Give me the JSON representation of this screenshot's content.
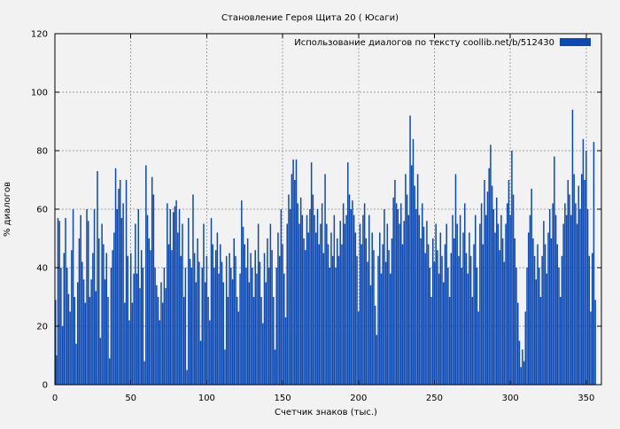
{
  "chart_data": {
    "type": "bar",
    "title": "Становление Героя Щита 20 ( Юсаги)",
    "legend_label": "Использование диалогов по тексту  coollib.net/b/512430",
    "xlabel": "Счетчик знаков (тыс.)",
    "ylabel": "% диалогов",
    "xlim": [
      0,
      360
    ],
    "ylim": [
      0,
      120
    ],
    "xticks": [
      0,
      50,
      100,
      150,
      200,
      250,
      300,
      350
    ],
    "yticks": [
      0,
      20,
      40,
      60,
      80,
      100,
      120
    ],
    "grid": true,
    "legend_position": "top-right-inside",
    "color": "#0c49b2",
    "grid_color": "#a0a0a0",
    "border_color": "#000000",
    "background_color": "#f2f2f2",
    "x_start": 0,
    "x_step": 1,
    "values": [
      29,
      10,
      57,
      56,
      40,
      20,
      45,
      57,
      40,
      31,
      25,
      46,
      60,
      30,
      14,
      35,
      50,
      58,
      42,
      36,
      28,
      60,
      56,
      30,
      36,
      45,
      60,
      32,
      73,
      50,
      16,
      55,
      48,
      36,
      45,
      30,
      9,
      40,
      46,
      52,
      74,
      60,
      67,
      70,
      57,
      62,
      28,
      70,
      44,
      22,
      45,
      28,
      38,
      55,
      38,
      60,
      33,
      46,
      40,
      8,
      75,
      58,
      50,
      46,
      71,
      65,
      40,
      34,
      30,
      22,
      35,
      28,
      40,
      33,
      62,
      48,
      60,
      46,
      59,
      61,
      63,
      52,
      60,
      44,
      55,
      30,
      40,
      5,
      57,
      43,
      40,
      65,
      45,
      35,
      50,
      42,
      15,
      40,
      55,
      35,
      44,
      30,
      22,
      57,
      48,
      40,
      46,
      52,
      38,
      48,
      42,
      35,
      12,
      44,
      30,
      45,
      40,
      36,
      50,
      44,
      30,
      25,
      38,
      63,
      54,
      48,
      40,
      50,
      35,
      45,
      40,
      30,
      46,
      38,
      55,
      42,
      30,
      21,
      45,
      35,
      50,
      40,
      55,
      46,
      30,
      12,
      40,
      52,
      44,
      60,
      48,
      38,
      23,
      55,
      65,
      60,
      72,
      77,
      70,
      77,
      62,
      55,
      64,
      58,
      50,
      46,
      58,
      52,
      60,
      76,
      65,
      58,
      52,
      60,
      48,
      55,
      62,
      45,
      72,
      55,
      48,
      40,
      52,
      44,
      58,
      40,
      50,
      44,
      56,
      48,
      62,
      55,
      58,
      76,
      65,
      60,
      63,
      58,
      52,
      44,
      25,
      55,
      48,
      58,
      62,
      50,
      42,
      58,
      34,
      52,
      46,
      27,
      17,
      44,
      52,
      38,
      48,
      60,
      42,
      55,
      46,
      38,
      50,
      64,
      70,
      62,
      60,
      55,
      62,
      48,
      56,
      72,
      65,
      58,
      92,
      75,
      84,
      68,
      60,
      72,
      58,
      50,
      62,
      54,
      45,
      56,
      48,
      40,
      30,
      50,
      42,
      55,
      46,
      38,
      52,
      44,
      35,
      48,
      55,
      40,
      30,
      45,
      58,
      50,
      72,
      55,
      44,
      58,
      40,
      52,
      62,
      45,
      38,
      52,
      44,
      30,
      48,
      58,
      40,
      25,
      55,
      62,
      48,
      70,
      58,
      66,
      74,
      82,
      68,
      60,
      52,
      64,
      55,
      46,
      58,
      50,
      42,
      55,
      62,
      70,
      58,
      80,
      65,
      50,
      40,
      28,
      15,
      6,
      12,
      8,
      25,
      40,
      52,
      58,
      67,
      50,
      44,
      36,
      48,
      40,
      30,
      44,
      56,
      48,
      38,
      52,
      60,
      50,
      62,
      78,
      58,
      48,
      40,
      30,
      44,
      55,
      62,
      58,
      70,
      65,
      58,
      94,
      72,
      62,
      55,
      68,
      60,
      72,
      84,
      70,
      80,
      60,
      44,
      25,
      45,
      83,
      29
    ]
  }
}
